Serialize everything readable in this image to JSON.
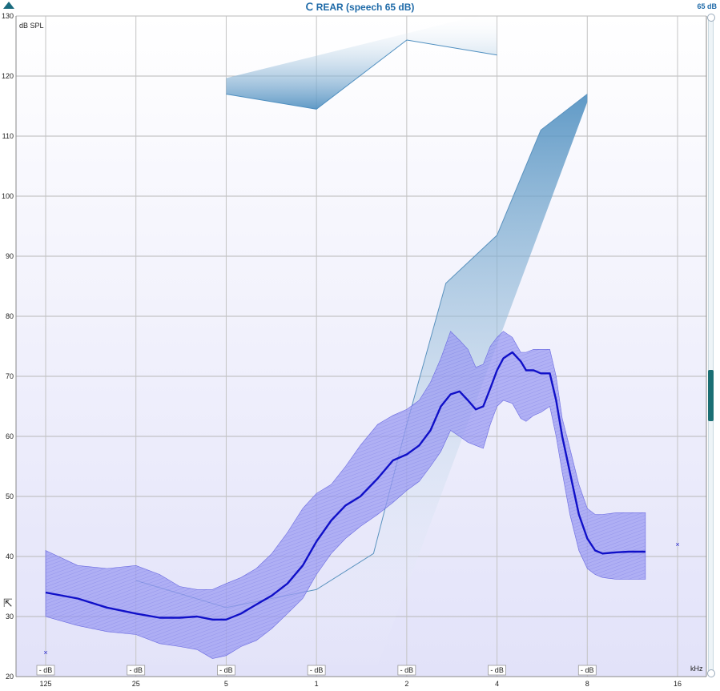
{
  "window": {
    "title": "REAR (speech 65 dB)",
    "level_readout": "65 dB",
    "ear_icon": "ear-icon",
    "accent_color": "#1e6aa8"
  },
  "chart_data": {
    "type": "area",
    "title": "REAR (speech 65 dB)",
    "ylabel": "dB SPL",
    "xlabel": "kHz",
    "x_scale": "log",
    "ylim": [
      20,
      130
    ],
    "yticks": [
      "20",
      "30",
      "40",
      "50",
      "60",
      "70",
      "80",
      "90",
      "100",
      "110",
      "120",
      "130"
    ],
    "x_ticks": [
      {
        "label": "125",
        "f": 0.125
      },
      {
        "label": "25",
        "f": 0.25
      },
      {
        "label": "5",
        "f": 0.5
      },
      {
        "label": "1",
        "f": 1
      },
      {
        "label": "2",
        "f": 2
      },
      {
        "label": "4",
        "f": 4
      },
      {
        "label": "8",
        "f": 8
      },
      {
        "label": "16",
        "f": 16
      }
    ],
    "db_markers": [
      "- dB",
      "- dB",
      "- dB",
      "- dB",
      "- dB",
      "- dB",
      "- dB"
    ],
    "grid": true,
    "colors": {
      "response": "#1010c8",
      "range_fill": "#8888f0",
      "ucl": "#5b93bf",
      "background_top": "#ffffff",
      "background_bottom": "#e4e4fa"
    },
    "series": [
      {
        "x": [
          0.125,
          0.16,
          0.2,
          0.25,
          0.3,
          0.35,
          0.4,
          0.45,
          0.5,
          0.56,
          0.63,
          0.71,
          0.8,
          0.9,
          1.0,
          1.12,
          1.25,
          1.4,
          1.6,
          1.8,
          2.0,
          2.2,
          2.4,
          2.6,
          2.8,
          3.0,
          3.2,
          3.4,
          3.6,
          3.8,
          4.0,
          4.2,
          4.5,
          4.8,
          5.0,
          5.3,
          5.6,
          6.0,
          6.3,
          6.6,
          7.0,
          7.5,
          8.0,
          8.5,
          9.0,
          10.0,
          11.0,
          12.5
        ],
        "values": [
          34,
          33,
          31.5,
          30.5,
          29.8,
          29.8,
          30,
          29.5,
          29.5,
          30.5,
          32,
          33.5,
          35.5,
          38.5,
          42.5,
          46,
          48.5,
          50,
          53,
          56,
          57,
          58.5,
          61,
          65,
          67,
          67.5,
          66,
          64.5,
          65,
          68,
          71,
          73,
          74,
          72.5,
          71,
          71,
          70.5,
          70.5,
          66,
          60,
          54,
          47,
          43,
          41,
          40.5,
          40.7,
          40.8,
          40.8
        ]
      },
      {
        "x": [
          0.125,
          0.16,
          0.2,
          0.25,
          0.3,
          0.35,
          0.4,
          0.45,
          0.5,
          0.56,
          0.63,
          0.71,
          0.8,
          0.9,
          1.0,
          1.12,
          1.25,
          1.4,
          1.6,
          1.8,
          2.0,
          2.2,
          2.4,
          2.6,
          2.8,
          3.0,
          3.2,
          3.4,
          3.6,
          3.8,
          4.0,
          4.2,
          4.5,
          4.8,
          5.0,
          5.3,
          5.6,
          6.0,
          6.3,
          6.6,
          7.0,
          7.5,
          8.0,
          8.5,
          9.0,
          10.0,
          11.0,
          12.5
        ],
        "values": [
          41,
          38.5,
          38,
          38.5,
          37,
          35,
          34.5,
          34.5,
          35.5,
          36.5,
          38,
          40.5,
          44,
          48,
          50.5,
          52,
          55,
          58.5,
          62,
          63.5,
          64.5,
          66,
          69,
          73,
          77.5,
          76,
          74.5,
          71.5,
          72,
          75,
          76.5,
          77.5,
          76.5,
          74,
          74,
          74.5,
          74.5,
          74.5,
          70,
          63,
          58,
          52,
          48,
          47,
          47,
          47.3,
          47.3,
          47.3
        ]
      },
      {
        "x": [
          0.125,
          0.16,
          0.2,
          0.25,
          0.3,
          0.35,
          0.4,
          0.45,
          0.5,
          0.56,
          0.63,
          0.71,
          0.8,
          0.9,
          1.0,
          1.12,
          1.25,
          1.4,
          1.6,
          1.8,
          2.0,
          2.2,
          2.4,
          2.6,
          2.8,
          3.0,
          3.2,
          3.4,
          3.6,
          3.8,
          4.0,
          4.2,
          4.5,
          4.8,
          5.0,
          5.3,
          5.6,
          6.0,
          6.3,
          6.6,
          7.0,
          7.5,
          8.0,
          8.5,
          9.0,
          10.0,
          11.0,
          12.5
        ],
        "values": [
          30,
          28.5,
          27.5,
          27,
          25.5,
          25,
          24.5,
          23,
          23.5,
          25,
          26,
          28,
          30.5,
          33,
          37,
          40.5,
          43,
          45,
          47,
          49,
          51,
          52.5,
          55,
          57.5,
          61,
          60,
          59,
          58.5,
          58,
          62,
          65,
          66,
          65.5,
          63,
          62.5,
          63.5,
          64,
          65,
          60,
          54,
          47,
          41,
          38,
          37,
          36.5,
          36.2,
          36.2,
          36.2
        ]
      },
      {
        "x": [
          0.25,
          0.5,
          1.0,
          1.55,
          2.0,
          2.7,
          4.0,
          5.6,
          8.0
        ],
        "values": [
          36,
          31.5,
          34.5,
          40.5,
          62,
          85.5,
          93.5,
          111,
          117
        ]
      },
      {
        "x": [
          0.5,
          1.0,
          2.0,
          4.0
        ],
        "values": [
          117,
          114.5,
          126,
          123.5
        ]
      }
    ],
    "markers": [
      {
        "x": 0.125,
        "y": 24
      },
      {
        "x": 16,
        "y": 42
      }
    ]
  }
}
